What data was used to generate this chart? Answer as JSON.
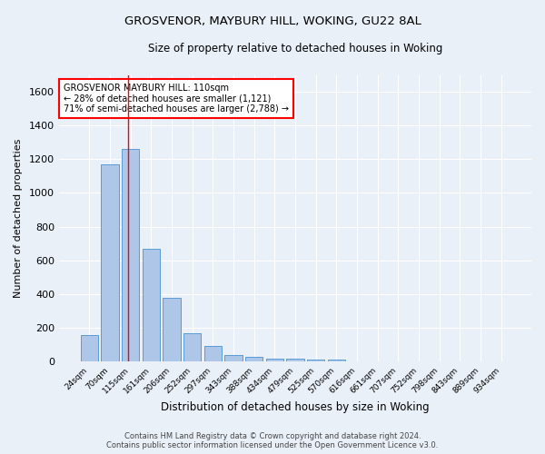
{
  "title_line1": "GROSVENOR, MAYBURY HILL, WOKING, GU22 8AL",
  "title_line2": "Size of property relative to detached houses in Woking",
  "xlabel": "Distribution of detached houses by size in Woking",
  "ylabel": "Number of detached properties",
  "categories": [
    "24sqm",
    "70sqm",
    "115sqm",
    "161sqm",
    "206sqm",
    "252sqm",
    "297sqm",
    "343sqm",
    "388sqm",
    "434sqm",
    "479sqm",
    "525sqm",
    "570sqm",
    "616sqm",
    "661sqm",
    "707sqm",
    "752sqm",
    "798sqm",
    "843sqm",
    "889sqm",
    "934sqm"
  ],
  "values": [
    155,
    1170,
    1260,
    670,
    375,
    170,
    90,
    38,
    28,
    18,
    18,
    12,
    12,
    0,
    0,
    0,
    0,
    0,
    0,
    0,
    0
  ],
  "bar_color": "#aec6e8",
  "bar_edge_color": "#5b9bd5",
  "red_line_x": 1.89,
  "red_line_label": "GROSVENOR MAYBURY HILL: 110sqm",
  "annotation_line2": "← 28% of detached houses are smaller (1,121)",
  "annotation_line3": "71% of semi-detached houses are larger (2,788) →",
  "annotation_box_color": "white",
  "annotation_box_edge_color": "red",
  "ylim": [
    0,
    1700
  ],
  "yticks": [
    0,
    200,
    400,
    600,
    800,
    1000,
    1200,
    1400,
    1600
  ],
  "background_color": "#eaf0f8",
  "grid_color": "white",
  "footer_line1": "Contains HM Land Registry data © Crown copyright and database right 2024.",
  "footer_line2": "Contains public sector information licensed under the Open Government Licence v3.0."
}
